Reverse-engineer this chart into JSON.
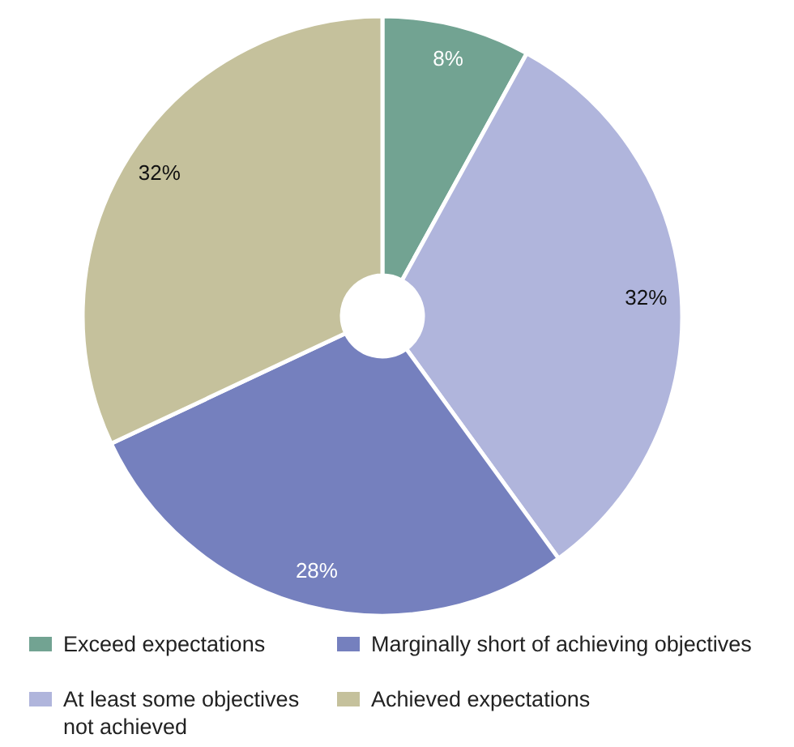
{
  "chart_data": {
    "type": "donut",
    "categories": [
      "Exceed expectations",
      "At least some objectives not achieved",
      "Marginally short of achieving objectives",
      "Achieved expectations"
    ],
    "values": [
      8,
      32,
      28,
      32
    ],
    "colors": [
      "#72a392",
      "#b0b5dc",
      "#7580be",
      "#c5c19c"
    ],
    "value_labels": [
      "8%",
      "32%",
      "28%",
      "32%"
    ],
    "legend": "bottom"
  }
}
